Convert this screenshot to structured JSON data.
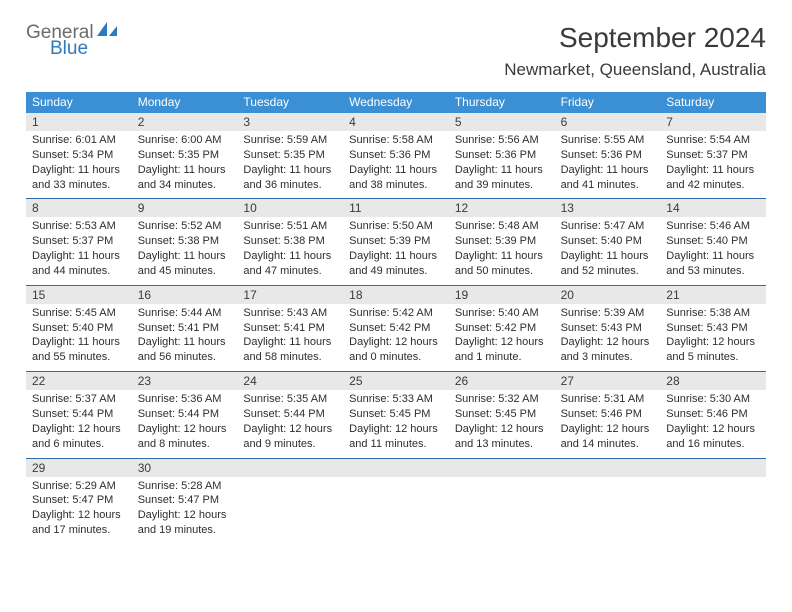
{
  "logo": {
    "general": "General",
    "blue": "Blue"
  },
  "title": "September 2024",
  "location": "Newmarket, Queensland, Australia",
  "colors": {
    "header_bg": "#3b8fd4",
    "header_text": "#ffffff",
    "daynum_bg": "#e8e8e8",
    "rule": "#2f6da8",
    "logo_blue": "#2f79bd",
    "logo_gray": "#6b6b6b"
  },
  "day_names": [
    "Sunday",
    "Monday",
    "Tuesday",
    "Wednesday",
    "Thursday",
    "Friday",
    "Saturday"
  ],
  "weeks": [
    [
      {
        "n": "1",
        "sunrise": "Sunrise: 6:01 AM",
        "sunset": "Sunset: 5:34 PM",
        "daylight": "Daylight: 11 hours and 33 minutes."
      },
      {
        "n": "2",
        "sunrise": "Sunrise: 6:00 AM",
        "sunset": "Sunset: 5:35 PM",
        "daylight": "Daylight: 11 hours and 34 minutes."
      },
      {
        "n": "3",
        "sunrise": "Sunrise: 5:59 AM",
        "sunset": "Sunset: 5:35 PM",
        "daylight": "Daylight: 11 hours and 36 minutes."
      },
      {
        "n": "4",
        "sunrise": "Sunrise: 5:58 AM",
        "sunset": "Sunset: 5:36 PM",
        "daylight": "Daylight: 11 hours and 38 minutes."
      },
      {
        "n": "5",
        "sunrise": "Sunrise: 5:56 AM",
        "sunset": "Sunset: 5:36 PM",
        "daylight": "Daylight: 11 hours and 39 minutes."
      },
      {
        "n": "6",
        "sunrise": "Sunrise: 5:55 AM",
        "sunset": "Sunset: 5:36 PM",
        "daylight": "Daylight: 11 hours and 41 minutes."
      },
      {
        "n": "7",
        "sunrise": "Sunrise: 5:54 AM",
        "sunset": "Sunset: 5:37 PM",
        "daylight": "Daylight: 11 hours and 42 minutes."
      }
    ],
    [
      {
        "n": "8",
        "sunrise": "Sunrise: 5:53 AM",
        "sunset": "Sunset: 5:37 PM",
        "daylight": "Daylight: 11 hours and 44 minutes."
      },
      {
        "n": "9",
        "sunrise": "Sunrise: 5:52 AM",
        "sunset": "Sunset: 5:38 PM",
        "daylight": "Daylight: 11 hours and 45 minutes."
      },
      {
        "n": "10",
        "sunrise": "Sunrise: 5:51 AM",
        "sunset": "Sunset: 5:38 PM",
        "daylight": "Daylight: 11 hours and 47 minutes."
      },
      {
        "n": "11",
        "sunrise": "Sunrise: 5:50 AM",
        "sunset": "Sunset: 5:39 PM",
        "daylight": "Daylight: 11 hours and 49 minutes."
      },
      {
        "n": "12",
        "sunrise": "Sunrise: 5:48 AM",
        "sunset": "Sunset: 5:39 PM",
        "daylight": "Daylight: 11 hours and 50 minutes."
      },
      {
        "n": "13",
        "sunrise": "Sunrise: 5:47 AM",
        "sunset": "Sunset: 5:40 PM",
        "daylight": "Daylight: 11 hours and 52 minutes."
      },
      {
        "n": "14",
        "sunrise": "Sunrise: 5:46 AM",
        "sunset": "Sunset: 5:40 PM",
        "daylight": "Daylight: 11 hours and 53 minutes."
      }
    ],
    [
      {
        "n": "15",
        "sunrise": "Sunrise: 5:45 AM",
        "sunset": "Sunset: 5:40 PM",
        "daylight": "Daylight: 11 hours and 55 minutes."
      },
      {
        "n": "16",
        "sunrise": "Sunrise: 5:44 AM",
        "sunset": "Sunset: 5:41 PM",
        "daylight": "Daylight: 11 hours and 56 minutes."
      },
      {
        "n": "17",
        "sunrise": "Sunrise: 5:43 AM",
        "sunset": "Sunset: 5:41 PM",
        "daylight": "Daylight: 11 hours and 58 minutes."
      },
      {
        "n": "18",
        "sunrise": "Sunrise: 5:42 AM",
        "sunset": "Sunset: 5:42 PM",
        "daylight": "Daylight: 12 hours and 0 minutes."
      },
      {
        "n": "19",
        "sunrise": "Sunrise: 5:40 AM",
        "sunset": "Sunset: 5:42 PM",
        "daylight": "Daylight: 12 hours and 1 minute."
      },
      {
        "n": "20",
        "sunrise": "Sunrise: 5:39 AM",
        "sunset": "Sunset: 5:43 PM",
        "daylight": "Daylight: 12 hours and 3 minutes."
      },
      {
        "n": "21",
        "sunrise": "Sunrise: 5:38 AM",
        "sunset": "Sunset: 5:43 PM",
        "daylight": "Daylight: 12 hours and 5 minutes."
      }
    ],
    [
      {
        "n": "22",
        "sunrise": "Sunrise: 5:37 AM",
        "sunset": "Sunset: 5:44 PM",
        "daylight": "Daylight: 12 hours and 6 minutes."
      },
      {
        "n": "23",
        "sunrise": "Sunrise: 5:36 AM",
        "sunset": "Sunset: 5:44 PM",
        "daylight": "Daylight: 12 hours and 8 minutes."
      },
      {
        "n": "24",
        "sunrise": "Sunrise: 5:35 AM",
        "sunset": "Sunset: 5:44 PM",
        "daylight": "Daylight: 12 hours and 9 minutes."
      },
      {
        "n": "25",
        "sunrise": "Sunrise: 5:33 AM",
        "sunset": "Sunset: 5:45 PM",
        "daylight": "Daylight: 12 hours and 11 minutes."
      },
      {
        "n": "26",
        "sunrise": "Sunrise: 5:32 AM",
        "sunset": "Sunset: 5:45 PM",
        "daylight": "Daylight: 12 hours and 13 minutes."
      },
      {
        "n": "27",
        "sunrise": "Sunrise: 5:31 AM",
        "sunset": "Sunset: 5:46 PM",
        "daylight": "Daylight: 12 hours and 14 minutes."
      },
      {
        "n": "28",
        "sunrise": "Sunrise: 5:30 AM",
        "sunset": "Sunset: 5:46 PM",
        "daylight": "Daylight: 12 hours and 16 minutes."
      }
    ],
    [
      {
        "n": "29",
        "sunrise": "Sunrise: 5:29 AM",
        "sunset": "Sunset: 5:47 PM",
        "daylight": "Daylight: 12 hours and 17 minutes."
      },
      {
        "n": "30",
        "sunrise": "Sunrise: 5:28 AM",
        "sunset": "Sunset: 5:47 PM",
        "daylight": "Daylight: 12 hours and 19 minutes."
      },
      {
        "empty": true
      },
      {
        "empty": true
      },
      {
        "empty": true
      },
      {
        "empty": true
      },
      {
        "empty": true
      }
    ]
  ]
}
